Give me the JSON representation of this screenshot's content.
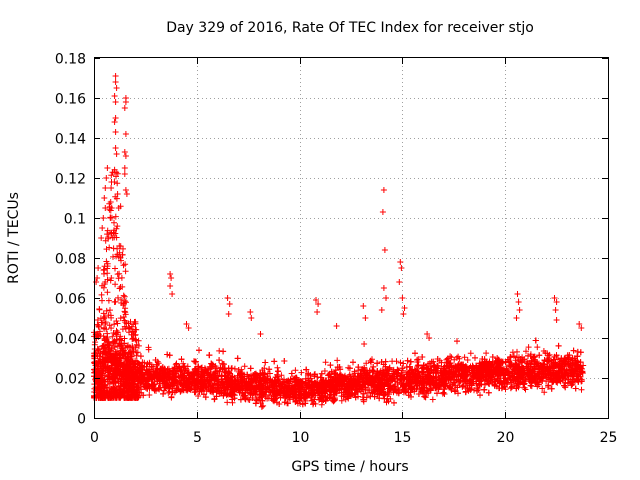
{
  "chart_data": {
    "type": "scatter",
    "title": "Day 329 of 2016, Rate Of TEC Index for receiver stjo",
    "xlabel": "GPS time / hours",
    "ylabel": "ROTI / TECUs",
    "xlim": [
      0,
      25
    ],
    "ylim": [
      0,
      0.18
    ],
    "xticks": [
      0,
      5,
      10,
      15,
      20,
      25
    ],
    "xtick_labels": [
      "0",
      "5",
      "10",
      "15",
      "20",
      "25"
    ],
    "yticks": [
      0,
      0.02,
      0.04,
      0.06,
      0.08,
      0.1,
      0.12,
      0.14,
      0.16,
      0.18
    ],
    "ytick_labels": [
      "0",
      "0.02",
      "0.04",
      "0.06",
      "0.08",
      "0.1",
      "0.12",
      "0.14",
      "0.16",
      "0.18"
    ],
    "grid": true,
    "marker": "+",
    "marker_color": "#ff0000",
    "data_range_hours": [
      0,
      23.8
    ],
    "baseline_band": [
      {
        "x": 0.0,
        "low": 0.01,
        "high": 0.034
      },
      {
        "x": 0.5,
        "low": 0.011,
        "high": 0.04
      },
      {
        "x": 1.0,
        "low": 0.01,
        "high": 0.04
      },
      {
        "x": 2.0,
        "low": 0.008,
        "high": 0.03
      },
      {
        "x": 5.0,
        "low": 0.007,
        "high": 0.028
      },
      {
        "x": 8.0,
        "low": 0.005,
        "high": 0.024
      },
      {
        "x": 10.0,
        "low": 0.004,
        "high": 0.022
      },
      {
        "x": 13.0,
        "low": 0.006,
        "high": 0.026
      },
      {
        "x": 15.0,
        "low": 0.006,
        "high": 0.028
      },
      {
        "x": 17.0,
        "low": 0.008,
        "high": 0.03
      },
      {
        "x": 20.0,
        "low": 0.01,
        "high": 0.032
      },
      {
        "x": 23.8,
        "low": 0.012,
        "high": 0.033
      }
    ],
    "highlight_points": [
      {
        "x": 1.05,
        "y": 0.171
      },
      {
        "x": 1.05,
        "y": 0.168
      },
      {
        "x": 1.1,
        "y": 0.165
      },
      {
        "x": 1.0,
        "y": 0.161
      },
      {
        "x": 1.05,
        "y": 0.158
      },
      {
        "x": 1.55,
        "y": 0.16
      },
      {
        "x": 1.55,
        "y": 0.158
      },
      {
        "x": 1.5,
        "y": 0.155
      },
      {
        "x": 1.05,
        "y": 0.15
      },
      {
        "x": 1.0,
        "y": 0.148
      },
      {
        "x": 1.05,
        "y": 0.143
      },
      {
        "x": 1.55,
        "y": 0.142
      },
      {
        "x": 1.05,
        "y": 0.135
      },
      {
        "x": 1.1,
        "y": 0.132
      },
      {
        "x": 1.5,
        "y": 0.133
      },
      {
        "x": 1.55,
        "y": 0.131
      },
      {
        "x": 1.5,
        "y": 0.125
      },
      {
        "x": 1.5,
        "y": 0.122
      },
      {
        "x": 1.55,
        "y": 0.114
      },
      {
        "x": 1.6,
        "y": 0.112
      },
      {
        "x": 0.65,
        "y": 0.125
      },
      {
        "x": 0.6,
        "y": 0.12
      },
      {
        "x": 0.55,
        "y": 0.115
      },
      {
        "x": 0.5,
        "y": 0.11
      },
      {
        "x": 0.55,
        "y": 0.105
      },
      {
        "x": 0.45,
        "y": 0.1
      },
      {
        "x": 0.4,
        "y": 0.095
      },
      {
        "x": 0.35,
        "y": 0.09
      },
      {
        "x": 0.85,
        "y": 0.118
      },
      {
        "x": 1.15,
        "y": 0.112
      },
      {
        "x": 1.2,
        "y": 0.105
      },
      {
        "x": 0.8,
        "y": 0.1
      },
      {
        "x": 0.2,
        "y": 0.075
      },
      {
        "x": 0.15,
        "y": 0.07
      },
      {
        "x": 0.1,
        "y": 0.068
      },
      {
        "x": 3.7,
        "y": 0.072
      },
      {
        "x": 3.75,
        "y": 0.07
      },
      {
        "x": 3.7,
        "y": 0.066
      },
      {
        "x": 3.8,
        "y": 0.062
      },
      {
        "x": 4.5,
        "y": 0.047
      },
      {
        "x": 4.6,
        "y": 0.045
      },
      {
        "x": 6.5,
        "y": 0.06
      },
      {
        "x": 6.6,
        "y": 0.057
      },
      {
        "x": 6.55,
        "y": 0.052
      },
      {
        "x": 7.6,
        "y": 0.053
      },
      {
        "x": 7.65,
        "y": 0.05
      },
      {
        "x": 8.1,
        "y": 0.042
      },
      {
        "x": 10.8,
        "y": 0.059
      },
      {
        "x": 10.9,
        "y": 0.057
      },
      {
        "x": 10.85,
        "y": 0.053
      },
      {
        "x": 11.8,
        "y": 0.046
      },
      {
        "x": 13.1,
        "y": 0.056
      },
      {
        "x": 13.2,
        "y": 0.05
      },
      {
        "x": 14.1,
        "y": 0.114
      },
      {
        "x": 14.05,
        "y": 0.103
      },
      {
        "x": 14.15,
        "y": 0.084
      },
      {
        "x": 14.1,
        "y": 0.065
      },
      {
        "x": 14.2,
        "y": 0.06
      },
      {
        "x": 14.0,
        "y": 0.054
      },
      {
        "x": 14.9,
        "y": 0.078
      },
      {
        "x": 14.95,
        "y": 0.075
      },
      {
        "x": 14.85,
        "y": 0.068
      },
      {
        "x": 15.0,
        "y": 0.06
      },
      {
        "x": 15.1,
        "y": 0.055
      },
      {
        "x": 15.05,
        "y": 0.052
      },
      {
        "x": 16.2,
        "y": 0.042
      },
      {
        "x": 16.3,
        "y": 0.04
      },
      {
        "x": 20.6,
        "y": 0.062
      },
      {
        "x": 20.65,
        "y": 0.058
      },
      {
        "x": 20.7,
        "y": 0.054
      },
      {
        "x": 20.55,
        "y": 0.05
      },
      {
        "x": 22.4,
        "y": 0.06
      },
      {
        "x": 22.5,
        "y": 0.058
      },
      {
        "x": 22.45,
        "y": 0.054
      },
      {
        "x": 22.5,
        "y": 0.049
      },
      {
        "x": 23.6,
        "y": 0.047
      },
      {
        "x": 23.7,
        "y": 0.045
      }
    ],
    "density_note": "About 6000 ROTI samples rendered as red plus markers; bulk values 0.005-0.035 TECU/min with bursts near 0-2 h and 14-15 h."
  }
}
